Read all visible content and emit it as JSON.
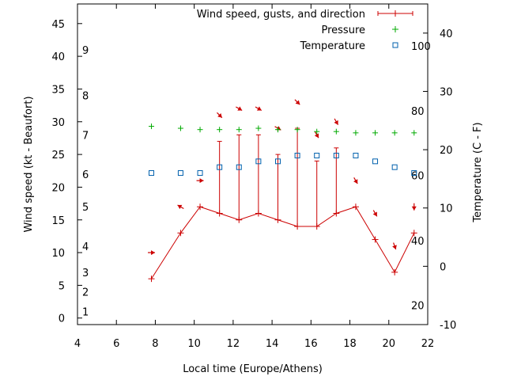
{
  "chart_data": {
    "type": "line",
    "xlabel": "Local time (Europe/Athens)",
    "ylabel_left": "Wind speed (kt - Beaufort)",
    "ylabel_right": "Temperature (C - F)",
    "xlim": [
      4,
      22
    ],
    "ylim_left": [
      -1,
      48
    ],
    "ylim_right": [
      -10,
      45
    ],
    "x_ticks": [
      "4",
      "6",
      "8",
      "10",
      "12",
      "14",
      "16",
      "18",
      "20",
      "22"
    ],
    "y_ticks_left": [
      "0",
      "5",
      "10",
      "15",
      "20",
      "25",
      "30",
      "35",
      "40",
      "45"
    ],
    "y_ticks_right": [
      "-10",
      "0",
      "10",
      "20",
      "30",
      "40"
    ],
    "beaufort_labels": [
      {
        "label": "1",
        "kt": 1
      },
      {
        "label": "2",
        "kt": 4
      },
      {
        "label": "3",
        "kt": 7
      },
      {
        "label": "4",
        "kt": 11
      },
      {
        "label": "5",
        "kt": 17
      },
      {
        "label": "6",
        "kt": 22
      },
      {
        "label": "7",
        "kt": 28
      },
      {
        "label": "8",
        "kt": 34
      },
      {
        "label": "9",
        "kt": 41
      }
    ],
    "fahrenheit_labels": [
      {
        "label": "20",
        "celsius": -6.7
      },
      {
        "label": "40",
        "celsius": 4.4
      },
      {
        "label": "60",
        "celsius": 15.6
      },
      {
        "label": "80",
        "celsius": 26.7
      },
      {
        "label": "100",
        "celsius": 37.8
      }
    ],
    "legend_position": "top-right",
    "series": [
      {
        "name": "Wind speed, gusts, and direction",
        "color": "#cc0000",
        "x": [
          7.8,
          9.3,
          10.3,
          11.3,
          12.3,
          13.3,
          14.3,
          15.3,
          16.3,
          17.3,
          18.3,
          19.3,
          20.3,
          21.3
        ],
        "speed": [
          6,
          13,
          17,
          16,
          15,
          16,
          15,
          14,
          14,
          16,
          17,
          12,
          7,
          13
        ],
        "gust": [
          null,
          null,
          null,
          27,
          28,
          28,
          25,
          29,
          24,
          26,
          null,
          null,
          null,
          null
        ],
        "direction_deg": [
          90,
          300,
          90,
          135,
          120,
          120,
          120,
          135,
          150,
          150,
          150,
          150,
          160,
          180
        ]
      },
      {
        "name": "Pressure",
        "color": "#00aa00",
        "x": [
          7.8,
          9.3,
          10.3,
          11.3,
          12.3,
          13.3,
          14.3,
          15.3,
          16.3,
          17.3,
          18.3,
          19.3,
          20.3,
          21.3
        ],
        "values": [
          29.3,
          29.0,
          28.8,
          28.8,
          28.8,
          29.0,
          28.8,
          28.8,
          28.5,
          28.5,
          28.3,
          28.3,
          28.3,
          28.3
        ]
      },
      {
        "name": "Temperature",
        "color": "#0060ad",
        "x": [
          7.8,
          9.3,
          10.3,
          11.3,
          12.3,
          13.3,
          14.3,
          15.3,
          16.3,
          17.3,
          18.3,
          19.3,
          20.3,
          21.3
        ],
        "values": [
          16,
          16,
          16,
          17,
          17,
          18,
          18,
          19,
          19,
          19,
          19,
          18,
          17,
          16
        ]
      }
    ]
  }
}
